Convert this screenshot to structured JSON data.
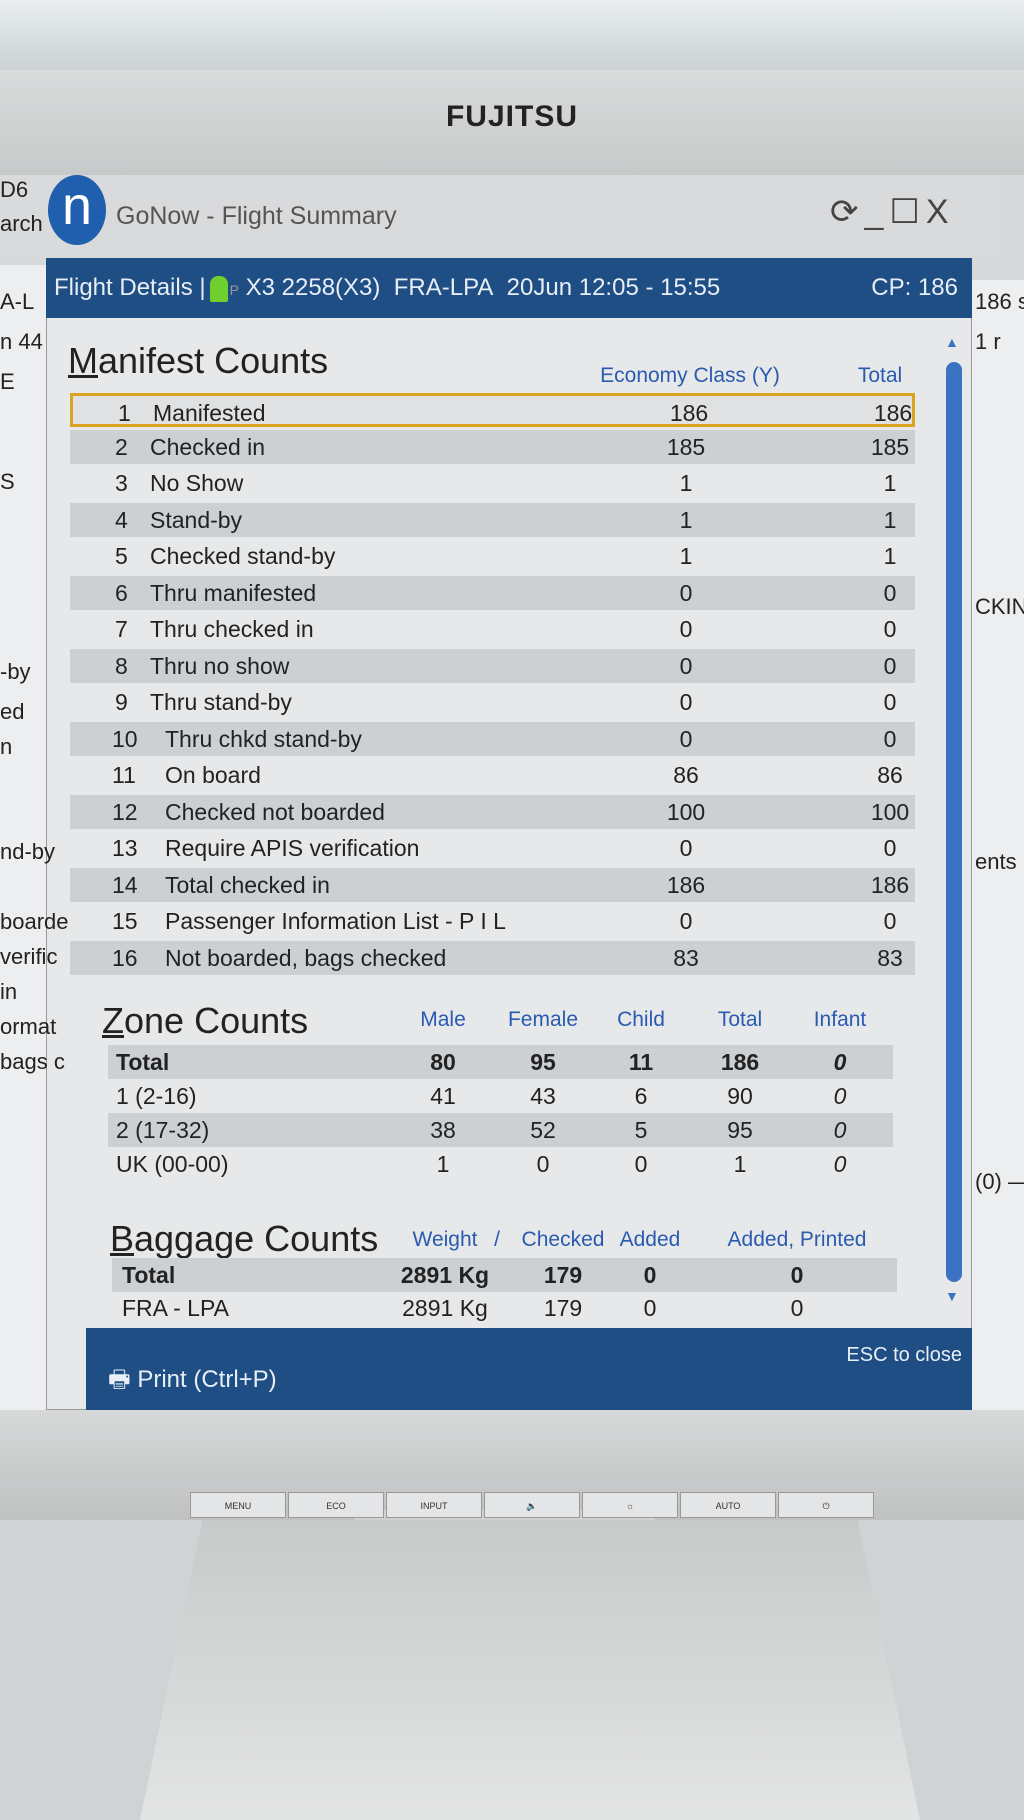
{
  "monitor": {
    "brand": "FUJITSU",
    "buttons": [
      "MENU",
      "ECO",
      "INPUT",
      "🔈",
      "☼",
      "AUTO",
      "⏻"
    ]
  },
  "window": {
    "logo": "n",
    "title": "GoNow - Flight Summary",
    "controls": "⟳_☐X"
  },
  "background_fragments": {
    "left": [
      "D6",
      "arch",
      "A-L",
      "n 44",
      "E",
      "S",
      "-by",
      "ed",
      "n",
      "nd-by",
      "boarde",
      "verific",
      "in",
      "ormat",
      "bags c"
    ],
    "right": [
      "186 s",
      "1 r",
      "CKIN",
      "ents (",
      "(0) —"
    ]
  },
  "header": {
    "section": "Flight Details |",
    "pax_icon": "passenger-icon",
    "pax_suffix": "P",
    "flight": "X3 2258(X3)",
    "route": "FRA-LPA",
    "date": "20Jun",
    "time": "12:05 - 15:55",
    "cp": "CP: 186"
  },
  "manifest": {
    "title_first": "M",
    "title_rest": "anifest Counts",
    "columns": [
      "Economy Class (Y)",
      "Total"
    ],
    "rows": [
      {
        "n": "1",
        "label": "Manifested",
        "y": "186",
        "total": "186"
      },
      {
        "n": "2",
        "label": "Checked in",
        "y": "185",
        "total": "185"
      },
      {
        "n": "3",
        "label": "No Show",
        "y": "1",
        "total": "1"
      },
      {
        "n": "4",
        "label": "Stand-by",
        "y": "1",
        "total": "1"
      },
      {
        "n": "5",
        "label": "Checked stand-by",
        "y": "1",
        "total": "1"
      },
      {
        "n": "6",
        "label": "Thru manifested",
        "y": "0",
        "total": "0"
      },
      {
        "n": "7",
        "label": "Thru checked in",
        "y": "0",
        "total": "0"
      },
      {
        "n": "8",
        "label": "Thru no show",
        "y": "0",
        "total": "0"
      },
      {
        "n": "9",
        "label": "Thru stand-by",
        "y": "0",
        "total": "0"
      },
      {
        "n": "10",
        "label": "Thru chkd stand-by",
        "y": "0",
        "total": "0"
      },
      {
        "n": "11",
        "label": "On board",
        "y": "86",
        "total": "86"
      },
      {
        "n": "12",
        "label": "Checked not boarded",
        "y": "100",
        "total": "100"
      },
      {
        "n": "13",
        "label": "Require APIS verification",
        "y": "0",
        "total": "0"
      },
      {
        "n": "14",
        "label": "Total checked in",
        "y": "186",
        "total": "186"
      },
      {
        "n": "15",
        "label": "Passenger Information List - P I L",
        "y": "0",
        "total": "0"
      },
      {
        "n": "16",
        "label": "Not boarded, bags checked",
        "y": "83",
        "total": "83"
      }
    ]
  },
  "zone": {
    "title_first": "Z",
    "title_rest": "one Counts",
    "columns": [
      "Male",
      "Female",
      "Child",
      "Total",
      "Infant"
    ],
    "rows": [
      {
        "label": "Total",
        "v": [
          "80",
          "95",
          "11",
          "186",
          "0"
        ]
      },
      {
        "label": "1 (2-16)",
        "v": [
          "41",
          "43",
          "6",
          "90",
          "0"
        ]
      },
      {
        "label": "2 (17-32)",
        "v": [
          "38",
          "52",
          "5",
          "95",
          "0"
        ]
      },
      {
        "label": "UK (00-00)",
        "v": [
          "1",
          "0",
          "0",
          "1",
          "0"
        ]
      }
    ]
  },
  "baggage": {
    "title_first": "B",
    "title_rest": "aggage Counts",
    "columns": [
      "Weight",
      "/",
      "Checked",
      "Added",
      "Added, Printed"
    ],
    "rows": [
      {
        "label": "Total",
        "v": [
          "2891 Kg",
          "179",
          "0",
          "0"
        ]
      },
      {
        "label": "FRA - LPA",
        "v": [
          "2891 Kg",
          "179",
          "0",
          "0"
        ]
      }
    ]
  },
  "footer": {
    "print": "Print (Ctrl+P)",
    "close": "ESC to close"
  },
  "colors": {
    "header_bg": "#1f4e85",
    "column_header": "#2a5bb0",
    "highlight": "#d9a520",
    "scrollbar": "#3b73c2"
  }
}
